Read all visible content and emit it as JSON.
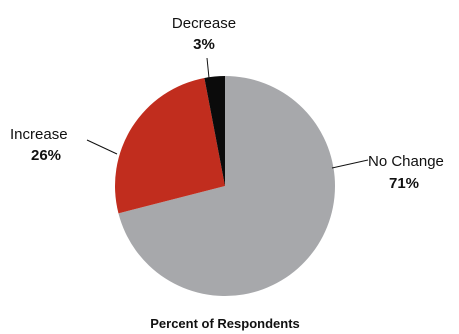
{
  "chart_data": {
    "type": "pie",
    "xlabel": "Percent of Respondents",
    "slices": [
      {
        "label": "No Change",
        "value": 71,
        "value_label": "71%",
        "color": "#a7a8ab"
      },
      {
        "label": "Increase",
        "value": 26,
        "value_label": "26%",
        "color": "#c12d1e"
      },
      {
        "label": "Decrease",
        "value": 3,
        "value_label": "3%",
        "color": "#0b0b0b"
      }
    ]
  }
}
